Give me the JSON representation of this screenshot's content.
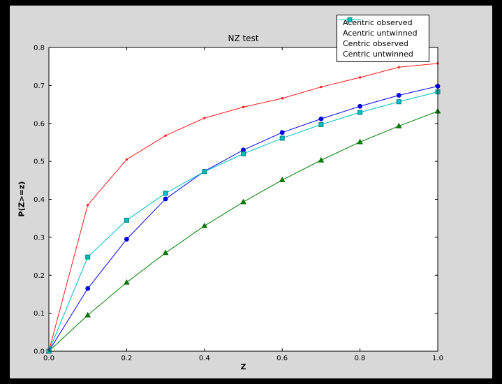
{
  "window": {
    "outer_background": "#000000",
    "figure_background": "#d8d8d8",
    "plot_background": "#ffffff"
  },
  "chart_data": {
    "type": "line",
    "title": "NZ test",
    "xlabel": "Z",
    "ylabel": "P(Z>=z)",
    "xlim": [
      0.0,
      1.0
    ],
    "ylim": [
      0.0,
      0.8
    ],
    "grid": false,
    "legend_position": "upper right",
    "xtick_values": [
      0.0,
      0.2,
      0.4,
      0.6,
      0.8,
      1.0
    ],
    "xtick_labels": [
      "0.0",
      "0.2",
      "0.4",
      "0.6",
      "0.8",
      "1.0"
    ],
    "ytick_values": [
      0.0,
      0.1,
      0.2,
      0.3,
      0.4,
      0.5,
      0.6,
      0.7,
      0.8
    ],
    "ytick_labels": [
      "0.0",
      "0.1",
      "0.2",
      "0.3",
      "0.4",
      "0.5",
      "0.6",
      "0.7",
      "0.8"
    ],
    "x": [
      0.0,
      0.1,
      0.2,
      0.3,
      0.4,
      0.5,
      0.6,
      0.7,
      0.8,
      0.9,
      1.0
    ],
    "series": [
      {
        "name": "Acentric observed",
        "color": "#0000ff",
        "marker": "circle",
        "marker_edge": "#0000b0",
        "values": [
          0.0,
          0.165,
          0.295,
          0.401,
          0.474,
          0.53,
          0.576,
          0.612,
          0.645,
          0.674,
          0.698
        ]
      },
      {
        "name": "Acentric untwinned",
        "color": "#008000",
        "marker": "triangle",
        "marker_edge": "#005c00",
        "values": [
          0.0,
          0.095,
          0.181,
          0.259,
          0.33,
          0.393,
          0.451,
          0.503,
          0.551,
          0.593,
          0.632
        ]
      },
      {
        "name": "Centric observed",
        "color": "#ff1a1a",
        "marker": "dot",
        "marker_edge": "#cc0000",
        "values": [
          0.0,
          0.385,
          0.505,
          0.568,
          0.614,
          0.643,
          0.666,
          0.696,
          0.721,
          0.748,
          0.758
        ]
      },
      {
        "name": "Centric untwinned",
        "color": "#00bfbf",
        "marker": "square",
        "marker_edge": "#007f7f",
        "values": [
          0.0,
          0.248,
          0.345,
          0.416,
          0.473,
          0.52,
          0.561,
          0.597,
          0.629,
          0.657,
          0.683
        ]
      }
    ]
  }
}
